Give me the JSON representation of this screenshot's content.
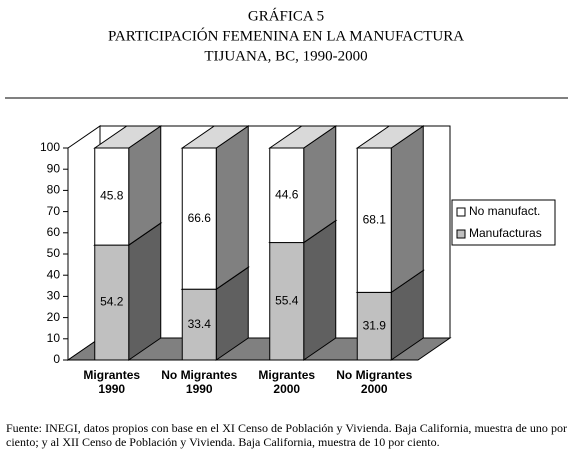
{
  "chart_data": {
    "type": "bar3d_stacked",
    "title": "GRÁFICA 5",
    "subtitle": [
      "PARTICIPACIÓN FEMENINA EN LA MANUFACTURA",
      "TIJUANA, BC, 1990-2000"
    ],
    "categories": [
      "Migrantes 1990",
      "No Migrantes 1990",
      "Migrantes 2000",
      "No Migrantes 2000"
    ],
    "series": [
      {
        "name": "Manufacturas",
        "color": "#c0c0c0",
        "values": [
          54.2,
          33.4,
          55.4,
          31.9
        ]
      },
      {
        "name": "No manufact.",
        "color": "#ffffff",
        "values": [
          45.8,
          66.6,
          44.6,
          68.1
        ]
      }
    ],
    "ylim": [
      0,
      100
    ],
    "yticks": [
      0,
      10,
      20,
      30,
      40,
      50,
      60,
      70,
      80,
      90,
      100
    ],
    "grid": false,
    "legend": "right",
    "note": "Fuente: INEGI, datos propios con base en el XI Censo de Población y Vivienda. Baja California, muestra de uno por ciento; y al XII Censo de Población y Vivienda. Baja California, muestra de 10 por ciento."
  }
}
